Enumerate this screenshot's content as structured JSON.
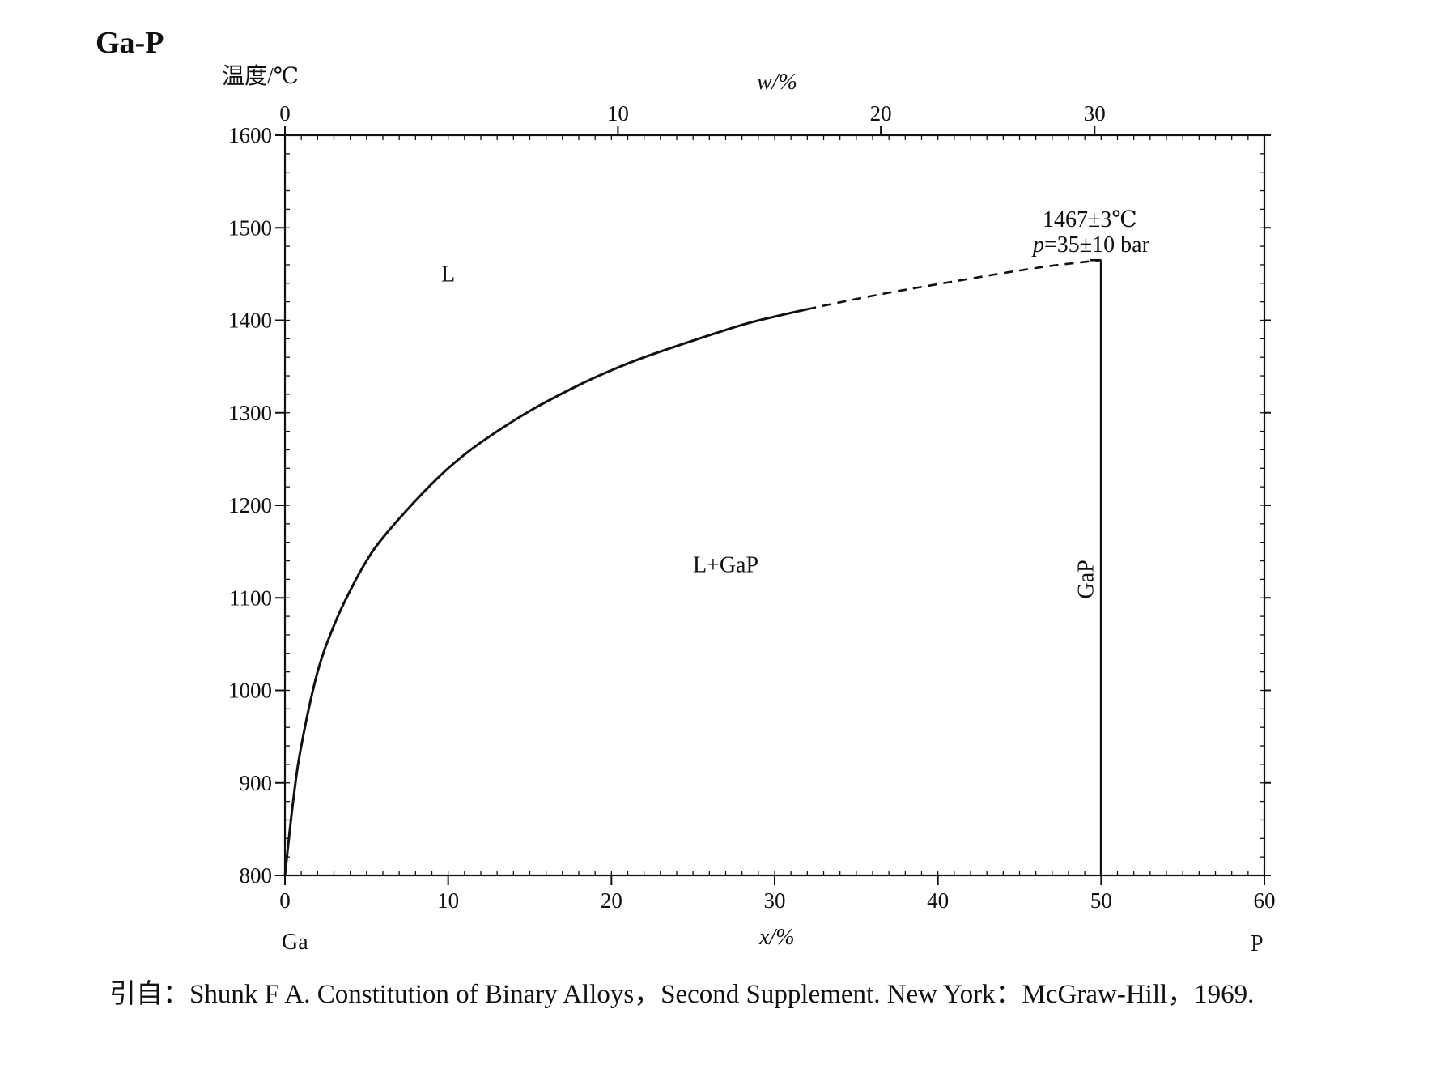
{
  "chart_data": {
    "type": "line",
    "title": "Ga-P",
    "ylabel": "温度/℃",
    "xlabel": "x/%",
    "x2label": "w/%",
    "xlim": [
      0,
      60
    ],
    "ylim": [
      800,
      1600
    ],
    "x_ticks": [
      "0",
      "10",
      "20",
      "30",
      "40",
      "50",
      "60"
    ],
    "y_ticks": [
      "800",
      "900",
      "1000",
      "1100",
      "1200",
      "1300",
      "1400",
      "1500",
      "1600"
    ],
    "x2_ticks": [
      {
        "label": "0",
        "x": 0
      },
      {
        "label": "10",
        "x": 20.4
      },
      {
        "label": "20",
        "x": 36.5
      },
      {
        "label": "30",
        "x": 49.6
      }
    ],
    "x_left_element": "Ga",
    "x_right_element": "P",
    "grid": false,
    "liquidus_solid": {
      "x": [
        0,
        0.5,
        1,
        2,
        3,
        4,
        5,
        6,
        8,
        10,
        12,
        15,
        18,
        20,
        22,
        25,
        28,
        30,
        32
      ],
      "y": [
        800,
        880,
        940,
        1020,
        1070,
        1108,
        1140,
        1165,
        1205,
        1240,
        1268,
        1302,
        1330,
        1346,
        1360,
        1378,
        1395,
        1404,
        1412
      ]
    },
    "liquidus_dashed": {
      "x": [
        32,
        35,
        38,
        41,
        44,
        47,
        50
      ],
      "y": [
        1412,
        1423,
        1433,
        1442,
        1451,
        1459,
        1465
      ]
    },
    "compound_line": {
      "name": "GaP",
      "x": 50,
      "y": [
        800,
        1465
      ]
    },
    "region_labels": [
      {
        "text": "L",
        "x": 10,
        "y": 1442
      },
      {
        "text": "L+GaP",
        "x": 27,
        "y": 1128
      }
    ],
    "annotations": {
      "melting_point": "1467±3℃",
      "pressure_symbol": "p",
      "pressure_value": "=35±10 bar"
    }
  },
  "caption": "引自：Shunk F A. Constitution of Binary Alloys，Second Supplement. New York：McGraw-Hill，1969."
}
